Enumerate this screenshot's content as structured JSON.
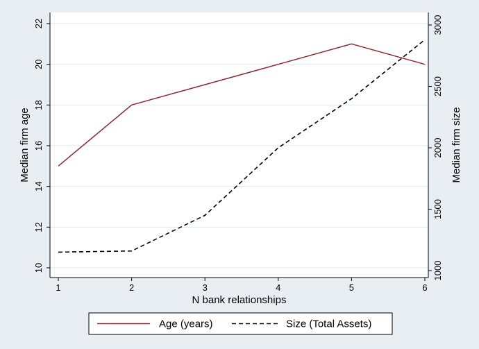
{
  "chart_data": {
    "type": "line",
    "x": [
      1,
      2,
      3,
      4,
      5,
      6
    ],
    "xlabel": "N bank relationships",
    "xlim": [
      1,
      6
    ],
    "xticks": [
      1,
      2,
      3,
      4,
      5,
      6
    ],
    "ylabel_left": "Median firm age",
    "ylim_left": [
      10,
      22
    ],
    "yticks_left": [
      10,
      12,
      14,
      16,
      18,
      20,
      22
    ],
    "ylabel_right": "Median firm size",
    "ylim_right": [
      1000,
      3000
    ],
    "yticks_right": [
      1000,
      1500,
      2000,
      2500,
      3000
    ],
    "grid": true,
    "legend_position": "bottom",
    "series": [
      {
        "name": "Age (years)",
        "axis": "left",
        "style": "solid",
        "color": "#8b2a2f",
        "values": [
          15,
          18,
          19,
          20,
          21,
          20
        ]
      },
      {
        "name": "Size (Total Assets)",
        "axis": "right",
        "style": "dashed",
        "color": "#000000",
        "values": [
          1150,
          1160,
          1450,
          2000,
          2400,
          2880
        ]
      }
    ]
  },
  "colors": {
    "background": "#e8eef2",
    "plot_background": "#ffffff",
    "grid": "#e0e7ec"
  }
}
